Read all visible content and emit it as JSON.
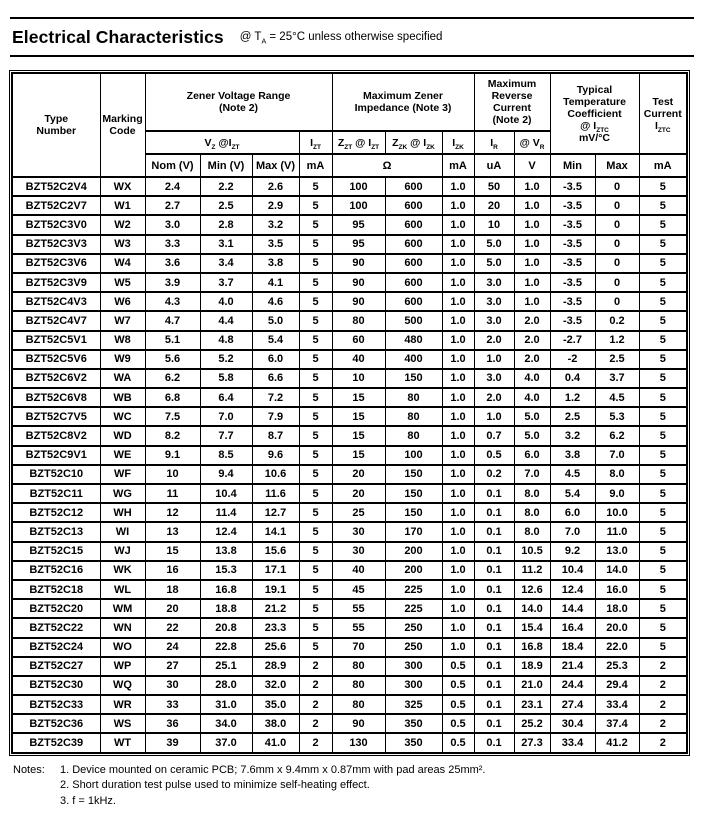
{
  "header": {
    "title": "Electrical Characteristics",
    "condition": "@ T~A~ = 25°C unless otherwise specified"
  },
  "table": {
    "group_headers": {
      "type_number": "Type\nNumber",
      "marking_code": "Marking\nCode",
      "zener_voltage_range": "Zener Voltage Range\n(Note 2)",
      "max_zener_impedance": "Maximum Zener\nImpedance (Note 3)",
      "max_reverse_current": "Maximum\nReverse\nCurrent\n(Note 2)",
      "temp_coefficient": "Typical\nTemperature\nCoefficient\n@ I~ZTC~\nmV/°C",
      "test_current": "Test\nCurrent\nI~ZTC~"
    },
    "sub_headers": {
      "vz_izt": "V~Z~ @I~ZT~",
      "izt": "I~ZT~",
      "zzt_izt": "Z~ZT~ @ I~ZT~",
      "zzk_izk": "Z~ZK~ @ I~ZK~",
      "izk": "I~ZK~",
      "ir": "I~R~",
      "vr": "@ V~R~"
    },
    "unit_headers": {
      "nom": "Nom (V)",
      "min": "Min (V)",
      "max": "Max (V)",
      "izt_unit": "mA",
      "impedance_unit": "Ω",
      "izk_unit": "mA",
      "ir_unit": "uA",
      "vr_unit": "V",
      "tc_min": "Min",
      "tc_max": "Max",
      "test_unit": "mA"
    },
    "rows": [
      [
        "BZT52C2V4",
        "WX",
        "2.4",
        "2.2",
        "2.6",
        "5",
        "100",
        "600",
        "1.0",
        "50",
        "1.0",
        "-3.5",
        "0",
        "5"
      ],
      [
        "BZT52C2V7",
        "W1",
        "2.7",
        "2.5",
        "2.9",
        "5",
        "100",
        "600",
        "1.0",
        "20",
        "1.0",
        "-3.5",
        "0",
        "5"
      ],
      [
        "BZT52C3V0",
        "W2",
        "3.0",
        "2.8",
        "3.2",
        "5",
        "95",
        "600",
        "1.0",
        "10",
        "1.0",
        "-3.5",
        "0",
        "5"
      ],
      [
        "BZT52C3V3",
        "W3",
        "3.3",
        "3.1",
        "3.5",
        "5",
        "95",
        "600",
        "1.0",
        "5.0",
        "1.0",
        "-3.5",
        "0",
        "5"
      ],
      [
        "BZT52C3V6",
        "W4",
        "3.6",
        "3.4",
        "3.8",
        "5",
        "90",
        "600",
        "1.0",
        "5.0",
        "1.0",
        "-3.5",
        "0",
        "5"
      ],
      [
        "BZT52C3V9",
        "W5",
        "3.9",
        "3.7",
        "4.1",
        "5",
        "90",
        "600",
        "1.0",
        "3.0",
        "1.0",
        "-3.5",
        "0",
        "5"
      ],
      [
        "BZT52C4V3",
        "W6",
        "4.3",
        "4.0",
        "4.6",
        "5",
        "90",
        "600",
        "1.0",
        "3.0",
        "1.0",
        "-3.5",
        "0",
        "5"
      ],
      [
        "BZT52C4V7",
        "W7",
        "4.7",
        "4.4",
        "5.0",
        "5",
        "80",
        "500",
        "1.0",
        "3.0",
        "2.0",
        "-3.5",
        "0.2",
        "5"
      ],
      [
        "BZT52C5V1",
        "W8",
        "5.1",
        "4.8",
        "5.4",
        "5",
        "60",
        "480",
        "1.0",
        "2.0",
        "2.0",
        "-2.7",
        "1.2",
        "5"
      ],
      [
        "BZT52C5V6",
        "W9",
        "5.6",
        "5.2",
        "6.0",
        "5",
        "40",
        "400",
        "1.0",
        "1.0",
        "2.0",
        "-2",
        "2.5",
        "5"
      ],
      [
        "BZT52C6V2",
        "WA",
        "6.2",
        "5.8",
        "6.6",
        "5",
        "10",
        "150",
        "1.0",
        "3.0",
        "4.0",
        "0.4",
        "3.7",
        "5"
      ],
      [
        "BZT52C6V8",
        "WB",
        "6.8",
        "6.4",
        "7.2",
        "5",
        "15",
        "80",
        "1.0",
        "2.0",
        "4.0",
        "1.2",
        "4.5",
        "5"
      ],
      [
        "BZT52C7V5",
        "WC",
        "7.5",
        "7.0",
        "7.9",
        "5",
        "15",
        "80",
        "1.0",
        "1.0",
        "5.0",
        "2.5",
        "5.3",
        "5"
      ],
      [
        "BZT52C8V2",
        "WD",
        "8.2",
        "7.7",
        "8.7",
        "5",
        "15",
        "80",
        "1.0",
        "0.7",
        "5.0",
        "3.2",
        "6.2",
        "5"
      ],
      [
        "BZT52C9V1",
        "WE",
        "9.1",
        "8.5",
        "9.6",
        "5",
        "15",
        "100",
        "1.0",
        "0.5",
        "6.0",
        "3.8",
        "7.0",
        "5"
      ],
      [
        "BZT52C10",
        "WF",
        "10",
        "9.4",
        "10.6",
        "5",
        "20",
        "150",
        "1.0",
        "0.2",
        "7.0",
        "4.5",
        "8.0",
        "5"
      ],
      [
        "BZT52C11",
        "WG",
        "11",
        "10.4",
        "11.6",
        "5",
        "20",
        "150",
        "1.0",
        "0.1",
        "8.0",
        "5.4",
        "9.0",
        "5"
      ],
      [
        "BZT52C12",
        "WH",
        "12",
        "11.4",
        "12.7",
        "5",
        "25",
        "150",
        "1.0",
        "0.1",
        "8.0",
        "6.0",
        "10.0",
        "5"
      ],
      [
        "BZT52C13",
        "WI",
        "13",
        "12.4",
        "14.1",
        "5",
        "30",
        "170",
        "1.0",
        "0.1",
        "8.0",
        "7.0",
        "11.0",
        "5"
      ],
      [
        "BZT52C15",
        "WJ",
        "15",
        "13.8",
        "15.6",
        "5",
        "30",
        "200",
        "1.0",
        "0.1",
        "10.5",
        "9.2",
        "13.0",
        "5"
      ],
      [
        "BZT52C16",
        "WK",
        "16",
        "15.3",
        "17.1",
        "5",
        "40",
        "200",
        "1.0",
        "0.1",
        "11.2",
        "10.4",
        "14.0",
        "5"
      ],
      [
        "BZT52C18",
        "WL",
        "18",
        "16.8",
        "19.1",
        "5",
        "45",
        "225",
        "1.0",
        "0.1",
        "12.6",
        "12.4",
        "16.0",
        "5"
      ],
      [
        "BZT52C20",
        "WM",
        "20",
        "18.8",
        "21.2",
        "5",
        "55",
        "225",
        "1.0",
        "0.1",
        "14.0",
        "14.4",
        "18.0",
        "5"
      ],
      [
        "BZT52C22",
        "WN",
        "22",
        "20.8",
        "23.3",
        "5",
        "55",
        "250",
        "1.0",
        "0.1",
        "15.4",
        "16.4",
        "20.0",
        "5"
      ],
      [
        "BZT52C24",
        "WO",
        "24",
        "22.8",
        "25.6",
        "5",
        "70",
        "250",
        "1.0",
        "0.1",
        "16.8",
        "18.4",
        "22.0",
        "5"
      ],
      [
        "BZT52C27",
        "WP",
        "27",
        "25.1",
        "28.9",
        "2",
        "80",
        "300",
        "0.5",
        "0.1",
        "18.9",
        "21.4",
        "25.3",
        "2"
      ],
      [
        "BZT52C30",
        "WQ",
        "30",
        "28.0",
        "32.0",
        "2",
        "80",
        "300",
        "0.5",
        "0.1",
        "21.0",
        "24.4",
        "29.4",
        "2"
      ],
      [
        "BZT52C33",
        "WR",
        "33",
        "31.0",
        "35.0",
        "2",
        "80",
        "325",
        "0.5",
        "0.1",
        "23.1",
        "27.4",
        "33.4",
        "2"
      ],
      [
        "BZT52C36",
        "WS",
        "36",
        "34.0",
        "38.0",
        "2",
        "90",
        "350",
        "0.5",
        "0.1",
        "25.2",
        "30.4",
        "37.4",
        "2"
      ],
      [
        "BZT52C39",
        "WT",
        "39",
        "37.0",
        "41.0",
        "2",
        "130",
        "350",
        "0.5",
        "0.1",
        "27.3",
        "33.4",
        "41.2",
        "2"
      ]
    ]
  },
  "notes": {
    "label": "Notes:",
    "items": [
      "1. Device mounted on ceramic PCB; 7.6mm x 9.4mm x 0.87mm with pad areas 25mm².",
      "2. Short duration test pulse used to minimize self-heating effect.",
      "3. f = 1kHz."
    ]
  }
}
